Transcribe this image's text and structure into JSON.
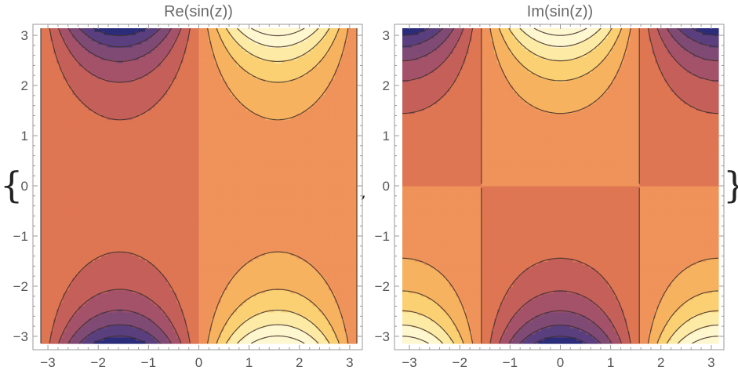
{
  "list_open": "{",
  "list_close": "}",
  "separator": ",",
  "colors": {
    "scale": [
      "#2b2c7a",
      "#5a3f7e",
      "#7f4a74",
      "#a4526a",
      "#c46059",
      "#df7653",
      "#ef935a",
      "#f6b25f",
      "#fbd073",
      "#fdeaa5",
      "#fef7cf"
    ],
    "contour_line": "#3f2f2a",
    "frame": "#9a9a9a"
  },
  "chart_data": [
    {
      "type": "contour",
      "function": "Re",
      "title": "Re(sin(z))",
      "xlim": [
        -3.1416,
        3.1416
      ],
      "ylim": [
        -3.1416,
        3.1416
      ],
      "x_ticks": [
        -3,
        -2,
        -1,
        0,
        1,
        2,
        3
      ],
      "y_ticks": [
        -3,
        -2,
        -1,
        0,
        1,
        2,
        3
      ],
      "x_tick_labels": [
        "−3",
        "−2",
        "−1",
        "0",
        "1",
        "2",
        "3"
      ],
      "y_tick_labels": [
        "−3",
        "−2",
        "−1",
        "0",
        "1",
        "2",
        "3"
      ],
      "contour_levels": [
        -10,
        -8,
        -6,
        -4,
        -2,
        0,
        2,
        4,
        6,
        8,
        10
      ],
      "value_range": [
        -11.6,
        11.6
      ]
    },
    {
      "type": "contour",
      "function": "Im",
      "title": "Im(sin(z))",
      "xlim": [
        -3.1416,
        3.1416
      ],
      "ylim": [
        -3.1416,
        3.1416
      ],
      "x_ticks": [
        -3,
        -2,
        -1,
        0,
        1,
        2,
        3
      ],
      "y_ticks": [
        -3,
        -2,
        -1,
        0,
        1,
        2,
        3
      ],
      "x_tick_labels": [
        "−3",
        "−2",
        "−1",
        "0",
        "1",
        "2",
        "3"
      ],
      "y_tick_labels": [
        "−3",
        "−2",
        "−1",
        "0",
        "1",
        "2",
        "3"
      ],
      "contour_levels": [
        -10,
        -8,
        -6,
        -4,
        -2,
        0,
        2,
        4,
        6,
        8,
        10
      ],
      "value_range": [
        -11.6,
        11.6
      ]
    }
  ]
}
